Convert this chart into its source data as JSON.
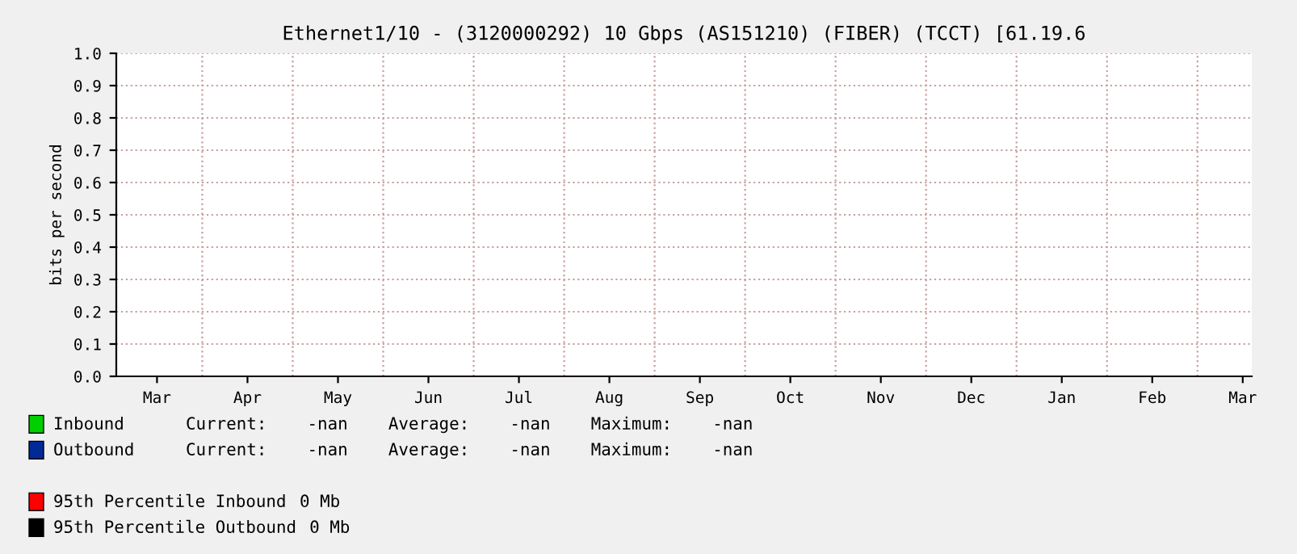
{
  "chart_data": {
    "type": "line",
    "title": "Ethernet1/10 - (3120000292) 10 Gbps (AS151210) (FIBER) (TCCT) [61.19.6",
    "ylabel": "bits per second",
    "categories": [
      "Mar",
      "Apr",
      "May",
      "Jun",
      "Jul",
      "Aug",
      "Sep",
      "Oct",
      "Nov",
      "Dec",
      "Jan",
      "Feb",
      "Mar"
    ],
    "series": [
      {
        "name": "Inbound",
        "color": "#00cf00",
        "values": [
          null,
          null,
          null,
          null,
          null,
          null,
          null,
          null,
          null,
          null,
          null,
          null,
          null
        ]
      },
      {
        "name": "Outbound",
        "color": "#002a97",
        "values": [
          null,
          null,
          null,
          null,
          null,
          null,
          null,
          null,
          null,
          null,
          null,
          null,
          null
        ]
      },
      {
        "name": "95th Percentile Inbound",
        "color": "#ff0000",
        "values": [
          null,
          null,
          null,
          null,
          null,
          null,
          null,
          null,
          null,
          null,
          null,
          null,
          null
        ]
      },
      {
        "name": "95th Percentile Outbound",
        "color": "#000000",
        "values": [
          null,
          null,
          null,
          null,
          null,
          null,
          null,
          null,
          null,
          null,
          null,
          null,
          null
        ]
      }
    ],
    "annotations": [
      "Current:    -nan    Average:    -nan    Maximum:    -nan",
      "Current:    -nan    Average:    -nan    Maximum:    -nan",
      "0 Mb",
      "0 Mb"
    ],
    "ylim": [
      0,
      1.0
    ],
    "yticks": [
      {
        "value": 0,
        "label": "0.0"
      },
      0.1,
      0.2,
      0.3,
      0.4,
      0.5,
      0.6,
      0.7,
      0.8,
      0.9,
      {
        "value": 1,
        "label": "1.0"
      }
    ],
    "grid": true,
    "legend": "bottom"
  }
}
